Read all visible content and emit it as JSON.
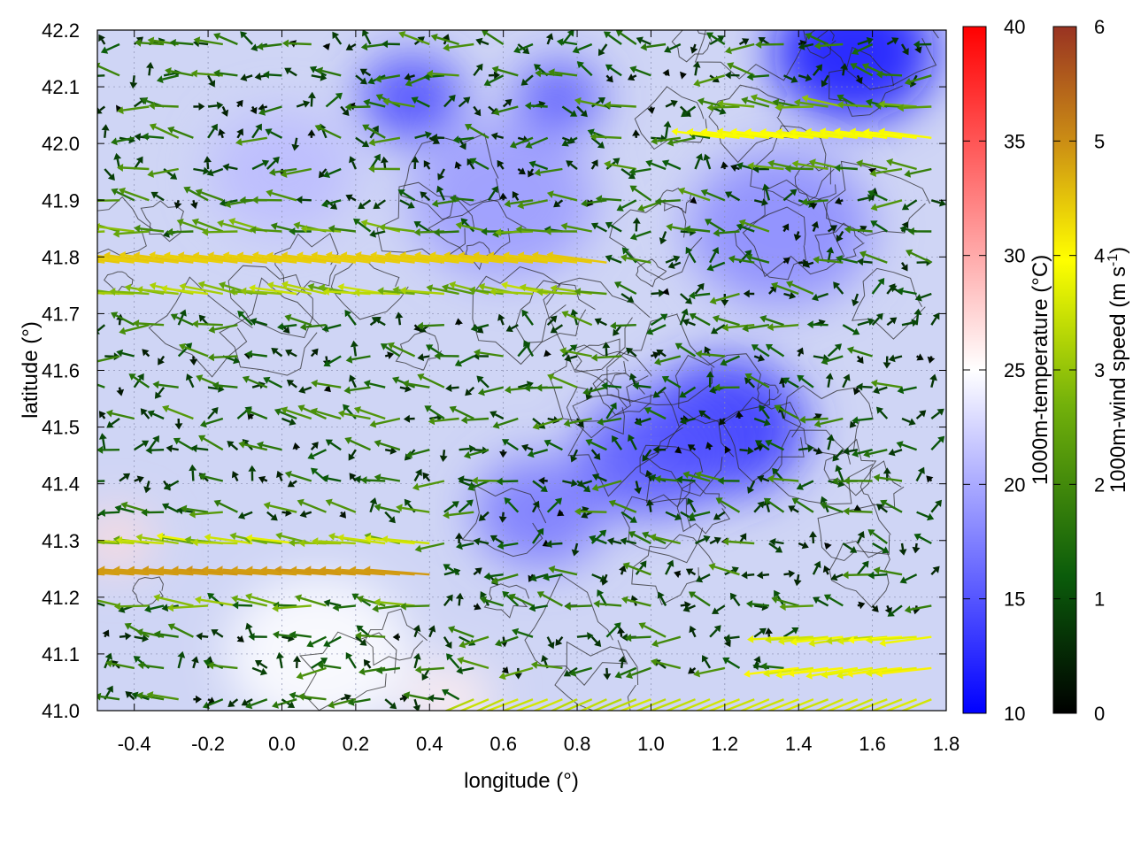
{
  "chart_data": {
    "type": "heatmap",
    "title": "",
    "xlabel": "longitude (°)",
    "ylabel": "latitude (°)",
    "xlim": [
      -0.5,
      1.8
    ],
    "ylim": [
      41.0,
      42.2
    ],
    "x_ticks": [
      "-0.4",
      "-0.2",
      "0.0",
      "0.2",
      "0.4",
      "0.6",
      "0.8",
      "1.0",
      "1.2",
      "1.4",
      "1.6",
      "1.8"
    ],
    "x_tick_values": [
      -0.4,
      -0.2,
      0.0,
      0.2,
      0.4,
      0.6,
      0.8,
      1.0,
      1.2,
      1.4,
      1.6,
      1.8
    ],
    "y_ticks": [
      "41.0",
      "41.1",
      "41.2",
      "41.3",
      "41.4",
      "41.5",
      "41.6",
      "41.7",
      "41.8",
      "41.9",
      "42.0",
      "42.1",
      "42.2"
    ],
    "y_tick_values": [
      41.0,
      41.1,
      41.2,
      41.3,
      41.4,
      41.5,
      41.6,
      41.7,
      41.8,
      41.9,
      42.0,
      42.1,
      42.2
    ],
    "grid": true,
    "overlays": [
      "terrain contour lines",
      "wind vectors colored by speed"
    ],
    "temperature_colorbar": {
      "label": "1000m-temperature (°C)",
      "range": [
        10,
        40
      ],
      "ticks": [
        "10",
        "15",
        "20",
        "25",
        "30",
        "35",
        "40"
      ],
      "tick_values": [
        10,
        15,
        20,
        25,
        30,
        35,
        40
      ],
      "colors": [
        "#0000ff",
        "#ffffff",
        "#ff0000"
      ]
    },
    "wind_colorbar": {
      "label_main": "1000m-wind speed (m s",
      "label_sup": "-1",
      "label_end": ")",
      "range": [
        0,
        6
      ],
      "ticks": [
        "0",
        "1",
        "2",
        "3",
        "4",
        "5",
        "6"
      ],
      "tick_values": [
        0,
        1,
        2,
        3,
        4,
        5,
        6
      ],
      "colors": [
        "#000000",
        "#0b5c0b",
        "#73b10b",
        "#ffff00",
        "#cc8f14",
        "#993322"
      ]
    },
    "temperature_field_blobs": [
      {
        "x": 1.55,
        "y": 42.16,
        "t": 11,
        "r": 0.22
      },
      {
        "x": 0.35,
        "y": 42.08,
        "t": 14,
        "r": 0.14
      },
      {
        "x": 0.75,
        "y": 42.08,
        "t": 15,
        "r": 0.12
      },
      {
        "x": 1.2,
        "y": 41.5,
        "t": 13,
        "r": 0.22
      },
      {
        "x": 1.0,
        "y": 41.45,
        "t": 15,
        "r": 0.2
      },
      {
        "x": 0.7,
        "y": 41.35,
        "t": 17,
        "r": 0.18
      },
      {
        "x": 1.35,
        "y": 41.85,
        "t": 18,
        "r": 0.25
      },
      {
        "x": 0.6,
        "y": 41.9,
        "t": 19,
        "r": 0.25
      },
      {
        "x": 0.0,
        "y": 41.95,
        "t": 21,
        "r": 0.2
      },
      {
        "x": -0.45,
        "y": 41.3,
        "t": 27,
        "r": 0.1
      },
      {
        "x": 0.1,
        "y": 41.1,
        "t": 25,
        "r": 0.25
      },
      {
        "x": 0.45,
        "y": 41.02,
        "t": 26,
        "r": 0.12
      }
    ],
    "wind_field": {
      "background_u": -0.6,
      "background_v": 0.15,
      "jets": [
        {
          "y": 41.78,
          "x0": -0.5,
          "x1": 0.9,
          "u": -4.5,
          "v": 0.6,
          "w": 0.06
        },
        {
          "y": 41.25,
          "x0": -0.5,
          "x1": 0.4,
          "u": -5.0,
          "v": 0.4,
          "w": 0.06
        },
        {
          "y": 42.02,
          "x0": 1.2,
          "x1": 1.8,
          "u": -4.0,
          "v": 0.5,
          "w": 0.05
        },
        {
          "y": 41.1,
          "x0": 1.4,
          "x1": 1.8,
          "u": -4.5,
          "v": -0.5,
          "w": 0.06
        },
        {
          "y": 41.03,
          "x0": 0.5,
          "x1": 1.8,
          "u": -3.5,
          "v": -1.5,
          "w": 0.03
        }
      ],
      "calm_zones": [
        {
          "x": 1.15,
          "y": 41.48,
          "r": 0.12
        },
        {
          "x": 0.05,
          "y": 41.6,
          "r": 0.1
        }
      ]
    }
  }
}
